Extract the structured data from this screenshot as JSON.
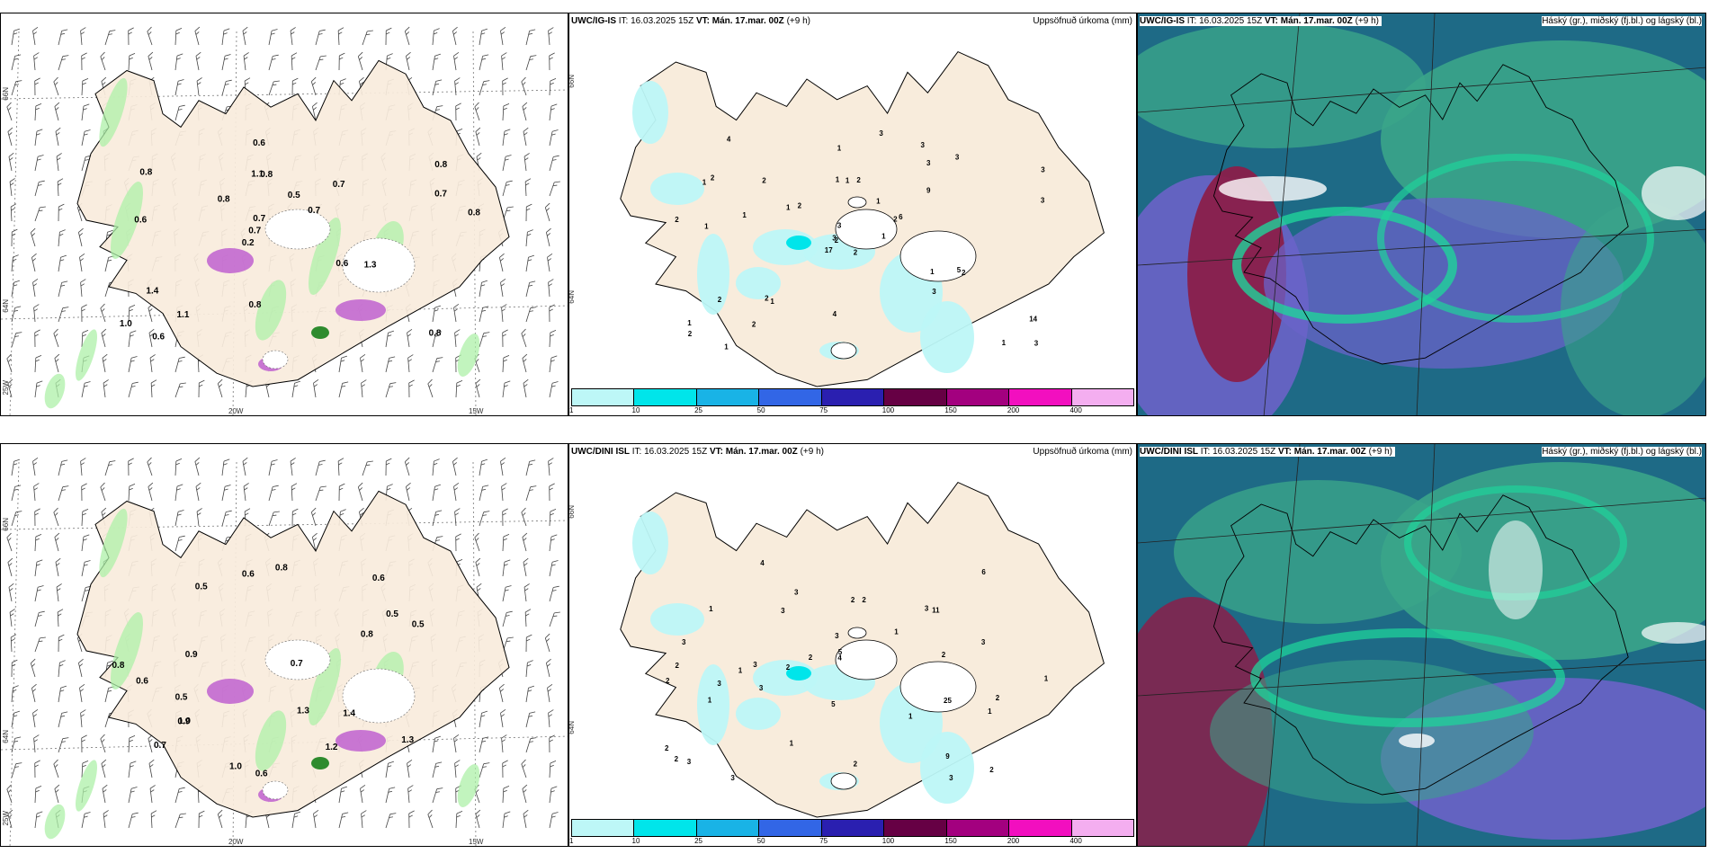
{
  "rows": [
    {
      "model": "UWC/IG-IS",
      "it_label": "IT:",
      "it_value": "16.03.2025 15Z",
      "vt_label": "VT:",
      "vt_value": "Mán. 17.mar. 00Z",
      "lead": "(+9 h)",
      "wind_values": [
        "0.8",
        "0.6",
        "0.8",
        "0.2",
        "0.7",
        "0.6",
        "1.1",
        "0.5",
        "1.4",
        "0.8",
        "1.0",
        "1.1",
        "0.8",
        "0.7",
        "1.3",
        "0.8",
        "0.6",
        "0.8",
        "0.6",
        "0.7",
        "0.7",
        "0.8",
        "0.7"
      ],
      "precip_values": [
        "2",
        "1",
        "2",
        "1",
        "2",
        "1",
        "3",
        "2",
        "3",
        "1",
        "4",
        "3",
        "1",
        "3",
        "17",
        "9",
        "1",
        "1",
        "1",
        "2",
        "2",
        "2",
        "2",
        "1",
        "6",
        "2",
        "2",
        "1",
        "2",
        "1",
        "3",
        "3",
        "4",
        "3",
        "2",
        "3",
        "2",
        "1",
        "14",
        "5",
        "3",
        "1",
        "1",
        "3"
      ]
    },
    {
      "model": "UWC/DINI ISL",
      "it_label": "IT:",
      "it_value": "16.03.2025 15Z",
      "vt_label": "VT:",
      "vt_value": "Mán. 17.mar. 00Z",
      "lead": "(+9 h)",
      "wind_values": [
        "0.7",
        "0.6",
        "0.5",
        "0.5",
        "1.3",
        "0.9",
        "0.5",
        "1.0",
        "0.5",
        "0.8",
        "0.6",
        "0.8",
        "1.4",
        "0.7",
        "0.6",
        "0.6",
        "1.3",
        "0.8",
        "0.9",
        "1.0",
        "1.2"
      ],
      "precip_values": [
        "1",
        "2",
        "1",
        "2",
        "1",
        "2",
        "1",
        "1",
        "3",
        "2",
        "2",
        "2",
        "3",
        "1",
        "3",
        "5",
        "4",
        "9",
        "3",
        "11",
        "6",
        "2",
        "5",
        "3",
        "2",
        "2",
        "1",
        "2",
        "3",
        "2",
        "2",
        "1",
        "3",
        "3",
        "3",
        "4",
        "3",
        "25",
        "3",
        "3"
      ]
    }
  ],
  "precip_panel": {
    "title": "Uppsöfnuð úrkoma (mm)",
    "colorbar": {
      "ticks": [
        "1",
        "10",
        "25",
        "50",
        "75",
        "100",
        "150",
        "200",
        "400"
      ],
      "colors": [
        "#bdf7f7",
        "#00e5ea",
        "#19b3e6",
        "#3266e6",
        "#2a1fb0",
        "#660044",
        "#a3007f",
        "#f20fbf",
        "#f4aef0"
      ]
    }
  },
  "cloud_panel": {
    "title": "Háský (gr.), miðský (fj.bl.) og lágský (bl.)"
  },
  "axis_labels": {
    "lat_66": "66N",
    "lat_64": "64N",
    "lon_25": "25W",
    "lon_20": "20W",
    "lon_15": "15W"
  },
  "colors": {
    "land": "#f8ecdc",
    "coast": "#000000",
    "precip_green": "#aef0a8",
    "precip_dark_green": "#2e8b2e",
    "magenta": "#c060d0",
    "cloud_teal": "#3aa58a",
    "cloud_dark": "#1e6a86",
    "cloud_purple": "#6a63c8",
    "cloud_maroon": "#8a1f4a",
    "cloud_mint": "#1fd39a"
  }
}
